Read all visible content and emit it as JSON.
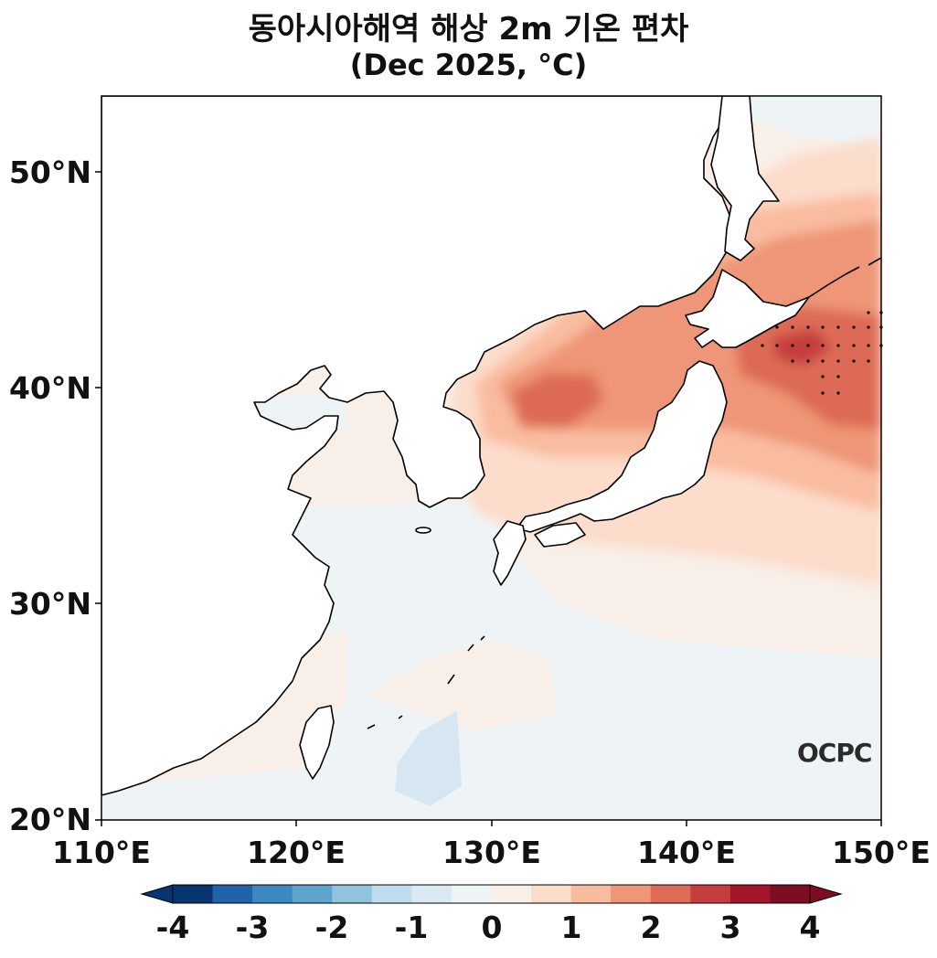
{
  "title": {
    "line1": "동아시아해역 해상 2m 기온 편차",
    "line2": "(Dec 2025, °C)"
  },
  "map": {
    "lon_range": [
      110,
      150
    ],
    "lat_range": [
      20,
      53.5
    ],
    "lat_ticks": [
      "50°N",
      "40°N",
      "30°N",
      "20°N"
    ],
    "lon_ticks": [
      "110°E",
      "120°E",
      "130°E",
      "140°E",
      "150°E"
    ],
    "land_color": "#ffffff",
    "coastline_color": "#000000"
  },
  "colorbar": {
    "tick_labels": [
      "-4",
      "-3",
      "-2",
      "-1",
      "0",
      "1",
      "2",
      "3",
      "4"
    ],
    "colors": [
      "#083470",
      "#1f63a8",
      "#3c88c0",
      "#5fa4cd",
      "#91c3de",
      "#c1dced",
      "#dbeaf2",
      "#eef4f6",
      "#f8efe8",
      "#fcdccb",
      "#f9bc9f",
      "#ee9677",
      "#dd6b55",
      "#c53e3d",
      "#a3162a",
      "#7d0d22"
    ],
    "extend": "both"
  },
  "watermark": "OCPC"
}
